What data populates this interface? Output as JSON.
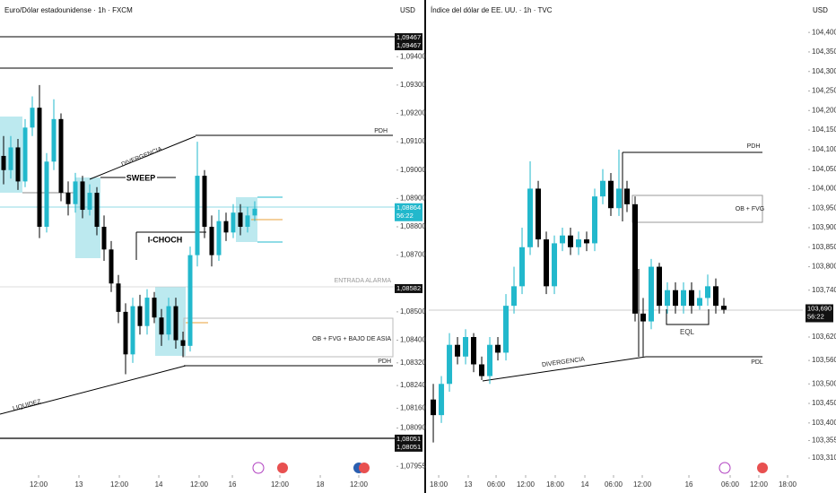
{
  "chart_data": [
    {
      "type": "candlestick",
      "title": "Euro/Dólar estadounidense · 1h · FXCM",
      "currency": "USD",
      "up_color": "#22b8cc",
      "down_color": "#000000",
      "open": [
        1.0905,
        1.09,
        1.0908,
        1.0896,
        1.0915,
        1.0922,
        1.088,
        1.0903,
        1.0918,
        1.0892,
        1.0888,
        1.0896,
        1.0886,
        1.0892,
        1.088,
        1.0872,
        1.086,
        1.085,
        1.0835,
        1.0852,
        1.0845,
        1.0855,
        1.0848,
        1.0842,
        1.0852,
        1.084,
        1.0838,
        1.087,
        1.0898,
        1.088,
        1.087,
        1.0882,
        1.0878,
        1.0885,
        1.088,
        1.0884
      ],
      "high": [
        1.0912,
        1.0912,
        1.0911,
        1.0918,
        1.0926,
        1.093,
        1.0906,
        1.0925,
        1.092,
        1.0896,
        1.0899,
        1.0898,
        1.0895,
        1.0894,
        1.0884,
        1.0875,
        1.0863,
        1.0853,
        1.0855,
        1.0856,
        1.0858,
        1.0857,
        1.0851,
        1.0855,
        1.0855,
        1.0843,
        1.0873,
        1.091,
        1.09,
        1.0884,
        1.0886,
        1.0885,
        1.0888,
        1.0888,
        1.0887,
        1.0889
      ],
      "low": [
        1.0895,
        1.0897,
        1.0893,
        1.0894,
        1.0912,
        1.0876,
        1.0878,
        1.09,
        1.0889,
        1.0884,
        1.0885,
        1.0883,
        1.0884,
        1.0877,
        1.0868,
        1.0857,
        1.0846,
        1.0828,
        1.0832,
        1.0842,
        1.0842,
        1.0846,
        1.0838,
        1.084,
        1.0837,
        1.0834,
        1.0836,
        1.0866,
        1.0876,
        1.0866,
        1.0868,
        1.0875,
        1.0876,
        1.0877,
        1.0878,
        1.0882
      ],
      "close": [
        1.09,
        1.0908,
        1.0896,
        1.0915,
        1.0922,
        1.088,
        1.0903,
        1.0918,
        1.0892,
        1.0888,
        1.0896,
        1.0886,
        1.0892,
        1.088,
        1.0872,
        1.086,
        1.085,
        1.0835,
        1.0852,
        1.0845,
        1.0855,
        1.0848,
        1.0842,
        1.0852,
        1.084,
        1.0838,
        1.087,
        1.0898,
        1.088,
        1.087,
        1.0882,
        1.0878,
        1.0885,
        1.088,
        1.0884,
        1.08864
      ],
      "xlim": [
        -0.5,
        54.5
      ],
      "xticks": [
        {
          "value": 4.88,
          "label": "12:00"
        },
        {
          "value": 10.5,
          "label": "13"
        },
        {
          "value": 16.13,
          "label": "12:00"
        },
        {
          "value": 21.63,
          "label": "14"
        },
        {
          "value": 27.25,
          "label": "12:00"
        },
        {
          "value": 31.88,
          "label": "16"
        },
        {
          "value": 38.5,
          "label": "12:00"
        },
        {
          "value": 44.13,
          "label": "18"
        },
        {
          "value": 49.5,
          "label": "12:00"
        }
      ],
      "ylim": [
        1.0794,
        1.096
      ],
      "yticks": [
        {
          "value": 1.094,
          "label": "1,09400"
        },
        {
          "value": 1.093,
          "label": "1,09300"
        },
        {
          "value": 1.092,
          "label": "1,09200"
        },
        {
          "value": 1.091,
          "label": "1,09100"
        },
        {
          "value": 1.09,
          "label": "1,09000"
        },
        {
          "value": 1.089,
          "label": "1,08900"
        },
        {
          "value": 1.088,
          "label": "1,08800"
        },
        {
          "value": 1.087,
          "label": "1,08700"
        },
        {
          "value": 1.085,
          "label": "1,08500"
        },
        {
          "value": 1.084,
          "label": "1,08400"
        },
        {
          "value": 1.0832,
          "label": "1,08320"
        },
        {
          "value": 1.0824,
          "label": "1,08240"
        },
        {
          "value": 1.0816,
          "label": "1,08160"
        },
        {
          "value": 1.0809,
          "label": "1,08090"
        },
        {
          "value": 1.07955,
          "label": "1,07955"
        }
      ],
      "price_labels": [
        {
          "value": 1.09467,
          "label": "1,09467"
        },
        {
          "value": 1.09467,
          "label": "1,09467"
        },
        {
          "value": 1.08582,
          "label": "1,08582"
        },
        {
          "value": 1.08051,
          "label": "1,08051"
        },
        {
          "value": 1.08051,
          "label": "1,08051"
        }
      ],
      "last_price": {
        "value": 1.08864,
        "label": "1,08864"
      },
      "countdown": "56:22",
      "annotations": [
        "PDH",
        "DIVERGENCIA",
        "SWEEP",
        "I-CHOCH",
        "ENTRADA ALARMA",
        "OB + FVG + BAJO DE ASIA",
        "PDH",
        "LIQUIDEZ"
      ]
    },
    {
      "type": "candlestick",
      "title": "Índice del dólar de EE. UU. · 1h · TVC",
      "currency": "USD",
      "up_color": "#22b8cc",
      "down_color": "#000000",
      "open": [
        103.46,
        103.42,
        103.5,
        103.6,
        103.57,
        103.62,
        103.55,
        103.52,
        103.6,
        103.58,
        103.7,
        103.75,
        103.85,
        104.0,
        103.87,
        103.75,
        103.86,
        103.88,
        103.85,
        103.87,
        103.86,
        103.98,
        104.02,
        103.95,
        104.0,
        103.96,
        103.68,
        103.66,
        103.8,
        103.7,
        103.74,
        103.7,
        103.74,
        103.7,
        103.72,
        103.75,
        103.7
      ],
      "high": [
        103.5,
        103.52,
        103.63,
        103.62,
        103.64,
        103.63,
        103.57,
        103.62,
        103.62,
        103.73,
        103.8,
        103.9,
        104.07,
        104.02,
        103.89,
        103.88,
        103.9,
        103.9,
        103.89,
        103.89,
        104.0,
        104.05,
        104.04,
        104.1,
        104.02,
        103.98,
        103.72,
        103.82,
        103.81,
        103.76,
        103.76,
        103.76,
        103.76,
        103.74,
        103.78,
        103.77,
        103.72
      ],
      "low": [
        103.35,
        103.4,
        103.48,
        103.55,
        103.55,
        103.53,
        103.51,
        103.5,
        103.56,
        103.56,
        103.68,
        103.73,
        103.83,
        103.85,
        103.73,
        103.73,
        103.84,
        103.83,
        103.83,
        103.84,
        103.84,
        103.96,
        103.93,
        103.93,
        103.94,
        103.66,
        103.57,
        103.64,
        103.68,
        103.68,
        103.68,
        103.68,
        103.68,
        103.69,
        103.7,
        103.68,
        103.68
      ],
      "close": [
        103.42,
        103.5,
        103.6,
        103.57,
        103.62,
        103.55,
        103.52,
        103.6,
        103.58,
        103.7,
        103.75,
        103.85,
        104.0,
        103.87,
        103.75,
        103.86,
        103.88,
        103.85,
        103.87,
        103.86,
        103.98,
        104.02,
        103.95,
        104.0,
        103.96,
        103.68,
        103.66,
        103.8,
        103.7,
        103.74,
        103.7,
        103.74,
        103.7,
        103.72,
        103.75,
        103.7,
        103.69
      ],
      "xlim": [
        -0.56,
        45.78
      ],
      "xticks": [
        {
          "value": 0.67,
          "label": "18:00"
        },
        {
          "value": 4.33,
          "label": "13"
        },
        {
          "value": 7.78,
          "label": "06:00"
        },
        {
          "value": 11.44,
          "label": "12:00"
        },
        {
          "value": 15.11,
          "label": "18:00"
        },
        {
          "value": 18.78,
          "label": "14"
        },
        {
          "value": 22.33,
          "label": "06:00"
        },
        {
          "value": 25.89,
          "label": "12:00"
        },
        {
          "value": 31.67,
          "label": "16"
        },
        {
          "value": 36.78,
          "label": "06:00"
        },
        {
          "value": 40.33,
          "label": "12:00"
        },
        {
          "value": 43.89,
          "label": "18:00"
        }
      ],
      "ylim": [
        103.278,
        104.483
      ],
      "yticks": [
        {
          "value": 104.4,
          "label": "104,400"
        },
        {
          "value": 104.35,
          "label": "104,350"
        },
        {
          "value": 104.3,
          "label": "104,300"
        },
        {
          "value": 104.25,
          "label": "104,250"
        },
        {
          "value": 104.2,
          "label": "104,200"
        },
        {
          "value": 104.15,
          "label": "104,150"
        },
        {
          "value": 104.1,
          "label": "104,100"
        },
        {
          "value": 104.05,
          "label": "104,050"
        },
        {
          "value": 104.0,
          "label": "104,000"
        },
        {
          "value": 103.95,
          "label": "103,950"
        },
        {
          "value": 103.9,
          "label": "103,900"
        },
        {
          "value": 103.85,
          "label": "103,850"
        },
        {
          "value": 103.8,
          "label": "103,800"
        },
        {
          "value": 103.74,
          "label": "103,740"
        },
        {
          "value": 103.62,
          "label": "103,620"
        },
        {
          "value": 103.56,
          "label": "103,560"
        },
        {
          "value": 103.5,
          "label": "103,500"
        },
        {
          "value": 103.45,
          "label": "103,450"
        },
        {
          "value": 103.4,
          "label": "103,400"
        },
        {
          "value": 103.355,
          "label": "103,355"
        },
        {
          "value": 103.31,
          "label": "103,310"
        }
      ],
      "price_labels": [],
      "last_price": {
        "value": 103.69,
        "label": "103,690"
      },
      "countdown": "56:22",
      "annotations": [
        "PDH",
        "OB + FVG",
        "EQL",
        "DIVERGENCIA",
        "PDL"
      ]
    }
  ]
}
